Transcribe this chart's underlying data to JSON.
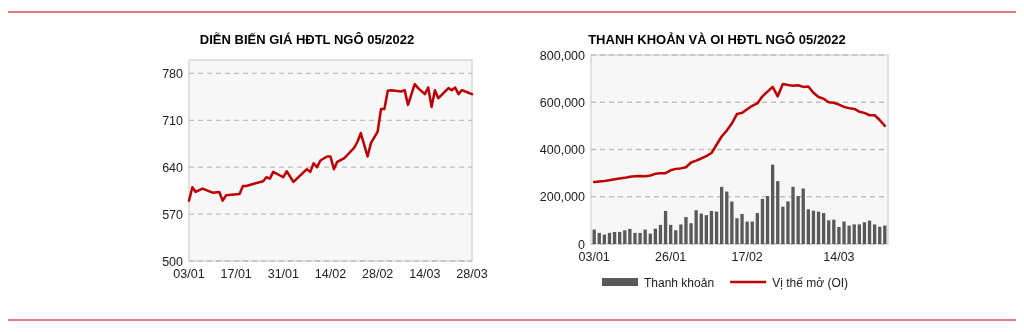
{
  "chart_data": [
    {
      "type": "line",
      "title": "DIỄN BIẾN GIÁ HĐTL NGÔ 05/2022",
      "legend": false,
      "grid": "y",
      "x": [
        "--01-03",
        "--01-04",
        "--01-05",
        "--01-07",
        "--01-10",
        "--01-12",
        "--01-13",
        "--01-14",
        "--01-18",
        "--01-19",
        "--01-20",
        "--01-22",
        "--01-25",
        "--01-26",
        "--01-27",
        "--01-28",
        "--01-31",
        "--02-01",
        "--02-03",
        "--02-07",
        "--02-08",
        "--02-09",
        "--02-10",
        "--02-11",
        "--02-13",
        "--02-14",
        "--02-15",
        "--02-16",
        "--02-18",
        "--02-21",
        "--02-22",
        "--02-23",
        "--02-25",
        "--02-26",
        "--02-28",
        "--03-01",
        "--03-02",
        "--03-03",
        "--03-04",
        "--03-07",
        "--03-08",
        "--03-09",
        "--03-11",
        "--03-12",
        "--03-14",
        "--03-15",
        "--03-16",
        "--03-17",
        "--03-18",
        "--03-19",
        "--03-21",
        "--03-22",
        "--03-23",
        "--03-24",
        "--03-25",
        "--03-26",
        "--03-28"
      ],
      "series": [
        {
          "color": "#c00000",
          "values": [
            590,
            610,
            603,
            608,
            602,
            603,
            590,
            598,
            600,
            612,
            612,
            615,
            619,
            625,
            623,
            633,
            625,
            634,
            618,
            637,
            633,
            646,
            640,
            650,
            656,
            656,
            637,
            648,
            653,
            669,
            678,
            691,
            656,
            676,
            693,
            727,
            727,
            754,
            755,
            753,
            755,
            733,
            764,
            758,
            749,
            759,
            730,
            755,
            743,
            748,
            758,
            755,
            759,
            749,
            755,
            753,
            749
          ]
        }
      ],
      "xlim": [
        "--01-03",
        "--03-28"
      ],
      "xticks": [
        {
          "value": "--01-03",
          "label": "03/01"
        },
        {
          "value": "--01-17",
          "label": "17/01"
        },
        {
          "value": "--01-31",
          "label": "31/01"
        },
        {
          "value": "--02-14",
          "label": "14/02"
        },
        {
          "value": "--02-28",
          "label": "28/02"
        },
        {
          "value": "--03-14",
          "label": "14/03"
        },
        {
          "value": "--03-28",
          "label": "28/03"
        }
      ],
      "ylim": [
        500,
        800
      ],
      "yticks": [
        500,
        570,
        640,
        710,
        780
      ]
    },
    {
      "type": "bar",
      "title": "THANH KHOẢN VÀ OI HĐTL NGÔ 05/2022",
      "legend": "bottom",
      "grid": "y",
      "categories": [
        "03/01",
        null,
        null,
        null,
        null,
        null,
        null,
        null,
        null,
        null,
        null,
        null,
        null,
        null,
        null,
        "26/01",
        null,
        null,
        null,
        null,
        null,
        null,
        null,
        null,
        null,
        null,
        null,
        null,
        null,
        null,
        "17/02",
        null,
        null,
        null,
        null,
        null,
        null,
        null,
        null,
        null,
        null,
        null,
        null,
        null,
        null,
        null,
        null,
        null,
        "14/03",
        null,
        null,
        null,
        null,
        null,
        null,
        null,
        null,
        null
      ],
      "series": [
        {
          "name": "Thanh khoản",
          "color": "#595959",
          "values": [
            61000,
            47000,
            40000,
            47000,
            51000,
            51000,
            58000,
            64000,
            47000,
            47000,
            61000,
            44000,
            65000,
            81000,
            140000,
            81000,
            58000,
            83000,
            114000,
            88000,
            143000,
            129000,
            122000,
            140000,
            137000,
            242000,
            222000,
            180000,
            109000,
            127000,
            95000,
            95000,
            131000,
            191000,
            203000,
            336000,
            266000,
            158000,
            180000,
            242000,
            203000,
            235000,
            147000,
            141000,
            137000,
            131000,
            100000,
            103000,
            72000,
            95000,
            78000,
            83000,
            83000,
            92000,
            99000,
            83000,
            73000,
            78000
          ]
        },
        {
          "name": "Vị thế mở (OI)",
          "type": "line",
          "color": "#c00000",
          "values": [
            262000,
            265000,
            267000,
            270000,
            274000,
            277000,
            280000,
            285000,
            287000,
            288000,
            287000,
            290000,
            297000,
            300000,
            300000,
            312000,
            318000,
            320000,
            325000,
            345000,
            353000,
            362000,
            372000,
            385000,
            420000,
            455000,
            480000,
            510000,
            550000,
            555000,
            570000,
            585000,
            595000,
            625000,
            645000,
            665000,
            625000,
            677000,
            673000,
            670000,
            672000,
            665000,
            667000,
            640000,
            622000,
            615000,
            600000,
            598000,
            590000,
            580000,
            575000,
            572000,
            560000,
            555000,
            545000,
            545000,
            525000,
            500000
          ]
        }
      ],
      "ylim": [
        0,
        800000
      ],
      "yticks": [
        0,
        {
          "value": 200000,
          "label": "200,000"
        },
        {
          "value": 400000,
          "label": "400,000"
        },
        {
          "value": 600000,
          "label": "600,000"
        },
        {
          "value": 800000,
          "label": "800,000"
        }
      ]
    }
  ]
}
